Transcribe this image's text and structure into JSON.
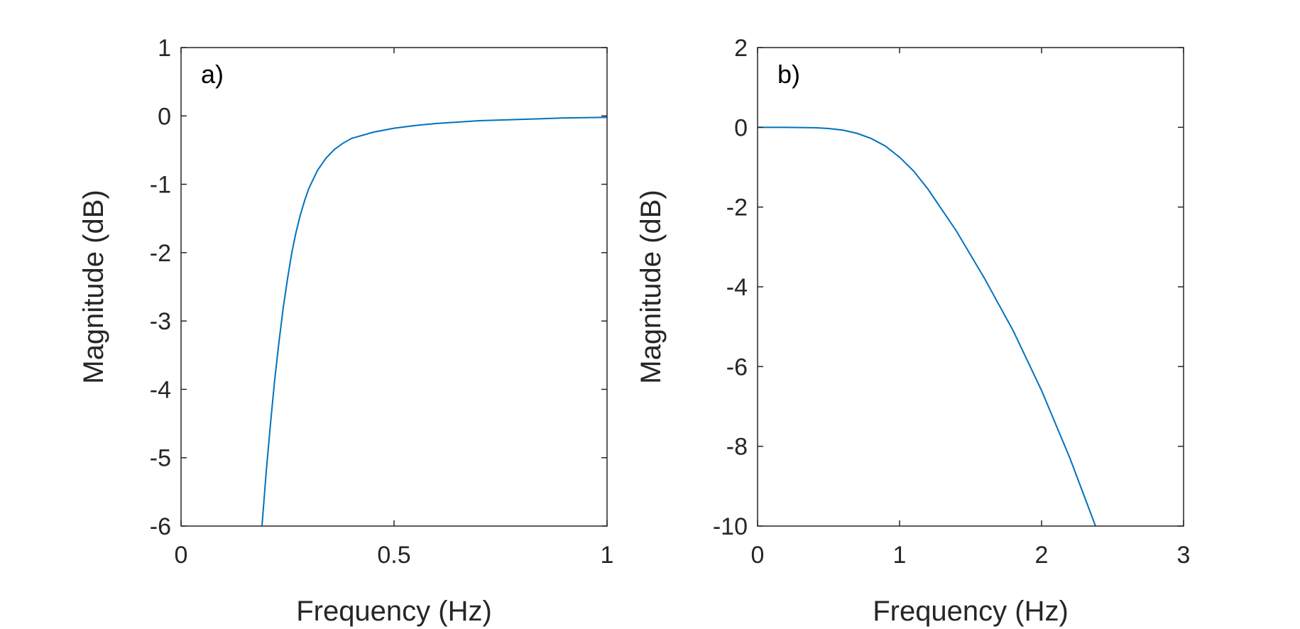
{
  "colors": {
    "line": "#0072BD",
    "axes": "#262626",
    "background": "#ffffff"
  },
  "chart_data": [
    {
      "type": "line",
      "panel_label": "a)",
      "xlabel": "Frequency (Hz)",
      "ylabel": "Magnitude (dB)",
      "xlim": [
        0,
        1
      ],
      "ylim": [
        -6,
        1
      ],
      "xticks": [
        0,
        0.5,
        1
      ],
      "xtick_labels": [
        "0",
        "0.5",
        "1"
      ],
      "yticks": [
        -6,
        -5,
        -4,
        -3,
        -2,
        -1,
        0,
        1
      ],
      "ytick_labels": [
        "-6",
        "-5",
        "-4",
        "-3",
        "-2",
        "-1",
        "0",
        "1"
      ],
      "grid": false,
      "legend": "none",
      "series": [
        {
          "x": [
            0.19,
            0.2,
            0.21,
            0.22,
            0.23,
            0.24,
            0.25,
            0.26,
            0.27,
            0.28,
            0.29,
            0.3,
            0.32,
            0.34,
            0.36,
            0.38,
            0.4,
            0.45,
            0.5,
            0.55,
            0.6,
            0.7,
            0.8,
            0.9,
            1.0
          ],
          "y": [
            -6.0,
            -5.2,
            -4.5,
            -3.85,
            -3.3,
            -2.8,
            -2.38,
            -2.0,
            -1.7,
            -1.45,
            -1.24,
            -1.06,
            -0.8,
            -0.62,
            -0.49,
            -0.4,
            -0.33,
            -0.24,
            -0.18,
            -0.14,
            -0.11,
            -0.07,
            -0.05,
            -0.03,
            -0.02
          ]
        }
      ]
    },
    {
      "type": "line",
      "panel_label": "b)",
      "xlabel": "Frequency (Hz)",
      "ylabel": "Magnitude (dB)",
      "xlim": [
        0,
        3
      ],
      "ylim": [
        -10,
        2
      ],
      "xticks": [
        0,
        1,
        2,
        3
      ],
      "xtick_labels": [
        "0",
        "1",
        "2",
        "3"
      ],
      "yticks": [
        -10,
        -8,
        -6,
        -4,
        -2,
        0,
        2
      ],
      "ytick_labels": [
        "-10",
        "-8",
        "-6",
        "-4",
        "-2",
        "0",
        "2"
      ],
      "grid": false,
      "legend": "none",
      "series": [
        {
          "x": [
            0,
            0.2,
            0.4,
            0.5,
            0.6,
            0.7,
            0.8,
            0.9,
            1.0,
            1.1,
            1.2,
            1.4,
            1.6,
            1.8,
            2.0,
            2.2,
            2.38
          ],
          "y": [
            0,
            0,
            -0.01,
            -0.03,
            -0.07,
            -0.15,
            -0.28,
            -0.47,
            -0.75,
            -1.1,
            -1.55,
            -2.6,
            -3.8,
            -5.1,
            -6.6,
            -8.3,
            -10.0
          ]
        }
      ]
    }
  ]
}
